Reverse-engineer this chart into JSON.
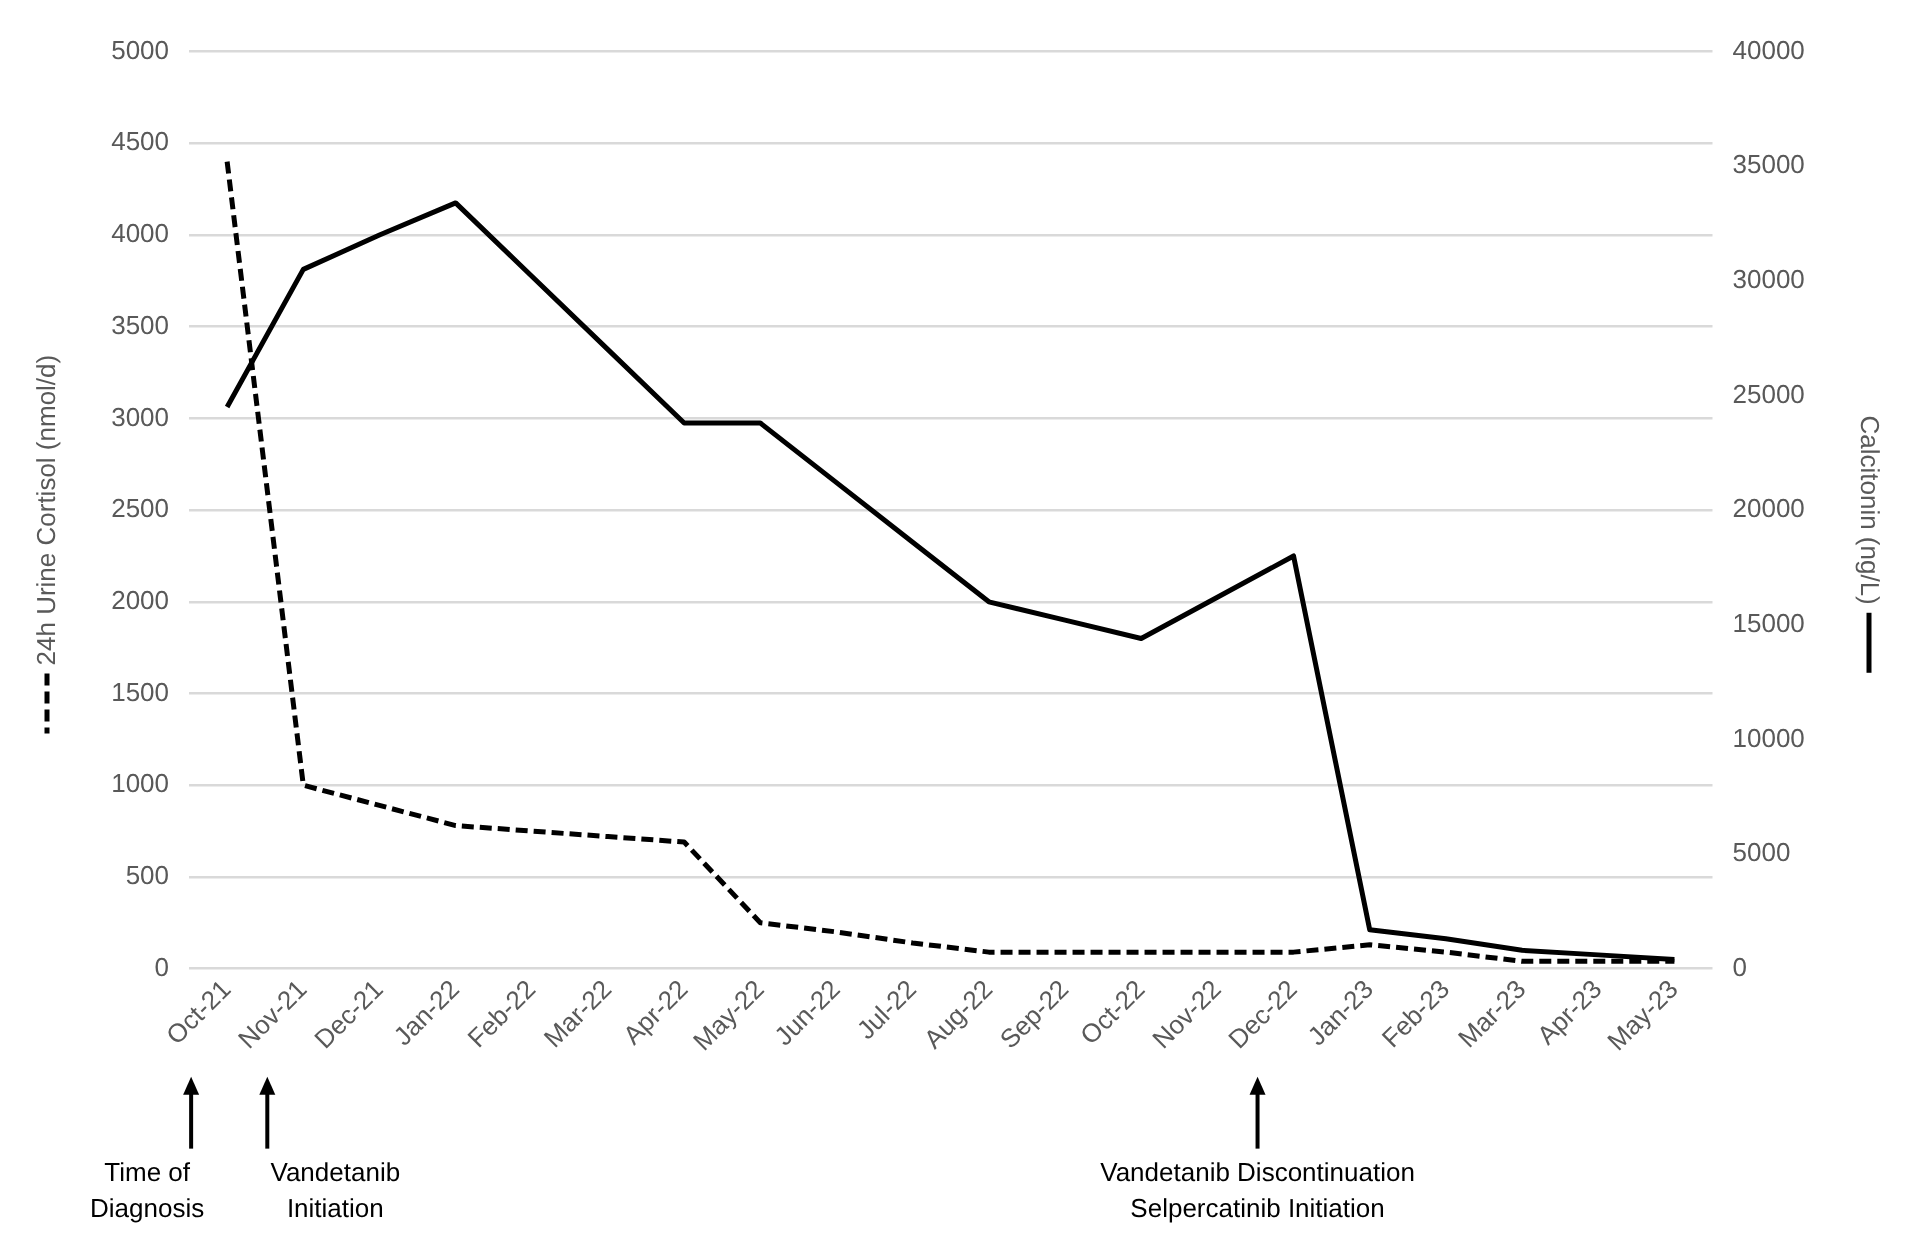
{
  "chart_data": {
    "type": "line",
    "ylabel": "24h Urine Cortisol (nmol/d)",
    "y2label": "Calcitonin (ng/L)",
    "categories": [
      "Oct-21",
      "Nov-21",
      "Dec-21",
      "Jan-22",
      "Feb-22",
      "Mar-22",
      "Apr-22",
      "May-22",
      "Jun-22",
      "Jul-22",
      "Aug-22",
      "Sep-22",
      "Oct-22",
      "Nov-22",
      "Dec-22",
      "Jan-23",
      "Feb-23",
      "Mar-23",
      "Apr-23",
      "May-23"
    ],
    "series": [
      {
        "color": "#000000",
        "line_style": "dashed",
        "axis": "y",
        "values": [
          4400,
          1000,
          890,
          780,
          750,
          720,
          690,
          250,
          200,
          140,
          90,
          90,
          90,
          90,
          90,
          130,
          90,
          40,
          40,
          40
        ]
      },
      {
        "color": "#000000",
        "line_style": "solid",
        "axis": "y2",
        "values": [
          24500,
          30500,
          32000,
          33400,
          30200,
          27000,
          23800,
          23800,
          21200,
          18600,
          16000,
          15200,
          14400,
          16200,
          18000,
          1700,
          1300,
          800,
          600,
          400
        ]
      }
    ],
    "ylim": [
      0,
      5000
    ],
    "yticks": [
      0,
      500,
      1000,
      1500,
      2000,
      2500,
      3000,
      3500,
      4000,
      4500,
      5000
    ],
    "y2lim": [
      0,
      40000
    ],
    "y2ticks": [
      0,
      5000,
      10000,
      15000,
      20000,
      25000,
      30000,
      35000,
      40000
    ],
    "grid": "y",
    "legend": false,
    "marker": "none",
    "annotations": [
      "Time of\nDiagnosis",
      "Vandetanib\nInitiation",
      "Vandetanib Discontinuation\nSelpercatinib Initiation"
    ]
  }
}
